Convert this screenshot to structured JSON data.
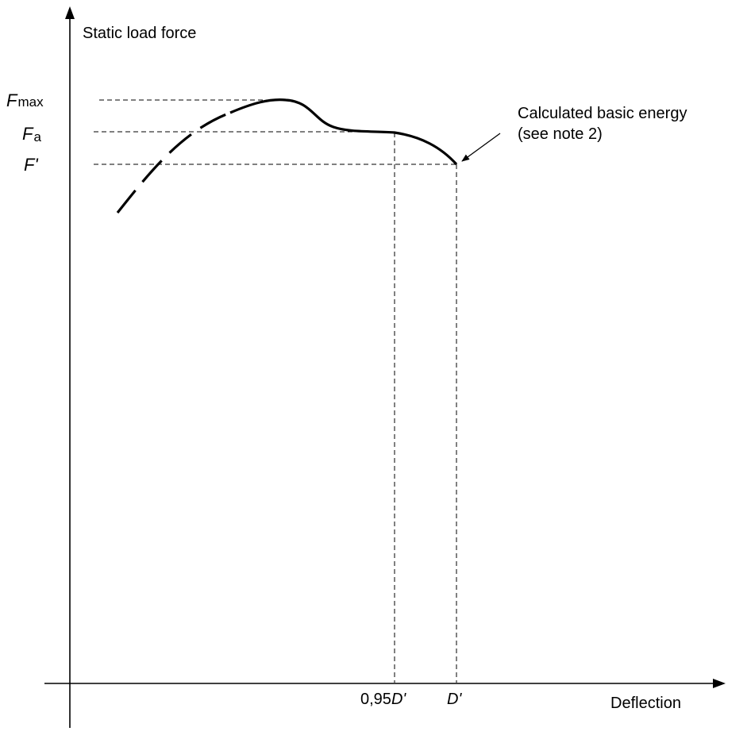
{
  "axes": {
    "y_label": "Static load force",
    "x_label": "Deflection"
  },
  "y_ticks": [
    {
      "id": "fmax",
      "symbol": "F",
      "subscript": "max"
    },
    {
      "id": "fa",
      "symbol": "F",
      "subscript": "a"
    },
    {
      "id": "fprime",
      "symbol": "F'",
      "subscript": ""
    }
  ],
  "x_ticks": [
    {
      "id": "d095",
      "prefix": "0,95",
      "symbol": "D'"
    },
    {
      "id": "dprime",
      "prefix": "",
      "symbol": "D'"
    }
  ],
  "annotation": {
    "line1": "Calculated basic energy",
    "line2": "(see note 2)"
  },
  "colors": {
    "ink": "#000000",
    "background": "#ffffff"
  }
}
